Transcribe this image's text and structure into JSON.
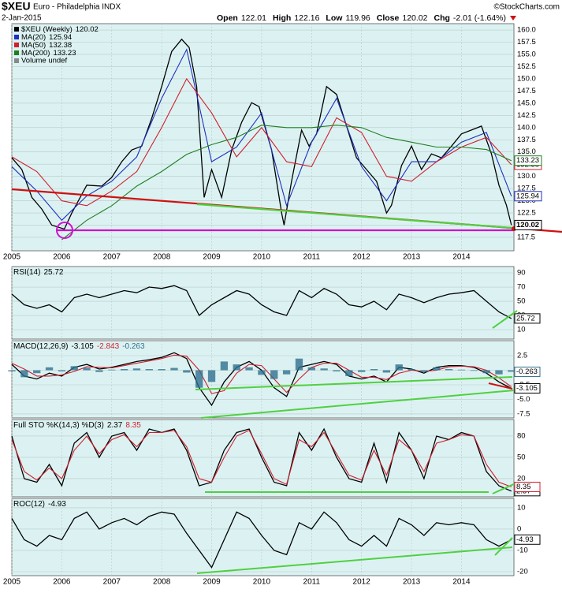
{
  "header": {
    "symbol": "$XEU",
    "name": "Euro - Philadelphia INDX",
    "source": "©StockCharts.com",
    "date": "2-Jan-2015",
    "quote": [
      {
        "label": "Open",
        "value": 122.01
      },
      {
        "label": "High",
        "value": 122.16
      },
      {
        "label": "Low",
        "value": 119.96
      },
      {
        "label": "Close",
        "value": 120.02
      },
      {
        "label": "Chg",
        "value": "-2.01 (-1.64%)"
      }
    ]
  },
  "chart_data": [
    {
      "type": "line",
      "volume_label": "Volume undef",
      "xlim": [
        2005,
        2015.05
      ],
      "xticks": [
        2005,
        2006,
        2007,
        2008,
        2009,
        2010,
        2011,
        2012,
        2013,
        2014
      ],
      "ylim": [
        114.75,
        161.3
      ],
      "yticks": [
        117.5,
        {
          "value": 120,
          "label": "120.0"
        },
        122.5,
        {
          "value": 125,
          "label": "125.0"
        },
        127.5,
        {
          "value": 130,
          "label": "130.0"
        },
        132.5,
        {
          "value": 135,
          "label": "135.0"
        },
        137.5,
        {
          "value": 140,
          "label": "140.0"
        },
        142.5,
        {
          "value": 145,
          "label": "145.0"
        },
        147.5,
        {
          "value": 150,
          "label": "150.0"
        },
        152.5,
        {
          "value": 155,
          "label": "155.0"
        },
        157.5,
        {
          "value": 160,
          "label": "160.0"
        }
      ],
      "series": [
        {
          "name": "$XEU (Weekly)",
          "color": "#000000",
          "x": [
            2005,
            2005.2,
            2005.4,
            2005.6,
            2005.8,
            2006.05,
            2006.2,
            2006.5,
            2006.8,
            2007,
            2007.2,
            2007.4,
            2007.6,
            2007.8,
            2008,
            2008.2,
            2008.4,
            2008.55,
            2008.7,
            2008.85,
            2009,
            2009.2,
            2009.4,
            2009.6,
            2009.8,
            2009.95,
            2010.2,
            2010.4,
            2010.45,
            2010.6,
            2010.8,
            2010.95,
            2011.1,
            2011.3,
            2011.5,
            2011.7,
            2011.9,
            2012.1,
            2012.3,
            2012.5,
            2012.6,
            2012.8,
            2013,
            2013.2,
            2013.4,
            2013.6,
            2013.8,
            2014,
            2014.2,
            2014.4,
            2014.6,
            2014.75,
            2014.9,
            2015
          ],
          "values": [
            133.8,
            131.4,
            125.7,
            123.3,
            120,
            119.2,
            122.5,
            128.2,
            128,
            129.8,
            133,
            135.4,
            136.2,
            141.9,
            148.4,
            155.6,
            158.1,
            156.4,
            148.4,
            125.7,
            131.4,
            125.7,
            135.4,
            141.1,
            145.1,
            144.3,
            135.4,
            122.5,
            120,
            129,
            139.5,
            136.2,
            138.7,
            148.4,
            146.8,
            140.3,
            133.8,
            131.4,
            129,
            122.5,
            124.1,
            132.2,
            136.2,
            131.4,
            134.6,
            133.8,
            136.2,
            138.7,
            139.5,
            140.3,
            134.6,
            128.2,
            124.1,
            120.02
          ]
        },
        {
          "name": "MA(20)",
          "color": "#1f2fbf",
          "x": [
            2005,
            2005.5,
            2006,
            2006.5,
            2007,
            2007.5,
            2008,
            2008.5,
            2009,
            2009.5,
            2010,
            2010.5,
            2011,
            2011.5,
            2012,
            2012.5,
            2013,
            2013.5,
            2014,
            2014.5,
            2015
          ],
          "values": [
            132,
            127,
            121,
            126,
            129,
            134,
            146,
            156,
            133,
            136,
            143,
            124,
            137,
            146,
            132,
            125,
            133,
            133,
            137,
            139,
            125.94
          ]
        },
        {
          "name": "MA(50)",
          "color": "#d01f2f",
          "x": [
            2005,
            2005.5,
            2006,
            2006.5,
            2007,
            2007.5,
            2008,
            2008.5,
            2009,
            2009.5,
            2010,
            2010.5,
            2011,
            2011.5,
            2012,
            2012.5,
            2013,
            2013.5,
            2014,
            2014.5,
            2015
          ],
          "values": [
            134,
            131,
            125,
            124,
            127,
            131,
            140,
            150,
            143,
            134,
            140,
            133,
            132,
            142,
            139,
            130,
            129,
            133,
            136,
            138,
            132.38
          ]
        },
        {
          "name": "MA(200)",
          "color": "#1f7f1f",
          "x": [
            2006,
            2006.5,
            2007,
            2007.5,
            2008,
            2008.5,
            2009,
            2009.5,
            2010,
            2010.5,
            2011,
            2011.5,
            2012,
            2012.5,
            2013,
            2013.5,
            2014,
            2014.5,
            2015
          ],
          "values": [
            117,
            121,
            124,
            128,
            131,
            134.5,
            136.5,
            138,
            140.5,
            140,
            140,
            140.5,
            140,
            138,
            137,
            136,
            136,
            135.5,
            133.23
          ]
        }
      ]
    },
    {
      "type": "line",
      "title": "RSI(14)",
      "xlim": [
        2005,
        2015.05
      ],
      "x": [
        2005,
        2005.25,
        2005.5,
        2005.75,
        2006,
        2006.25,
        2006.5,
        2006.75,
        2007,
        2007.25,
        2007.5,
        2007.75,
        2008,
        2008.25,
        2008.5,
        2008.75,
        2009,
        2009.25,
        2009.5,
        2009.75,
        2010,
        2010.25,
        2010.5,
        2010.75,
        2011,
        2011.25,
        2011.5,
        2011.75,
        2012,
        2012.25,
        2012.5,
        2012.75,
        2013,
        2013.25,
        2013.5,
        2013.75,
        2014,
        2014.25,
        2014.5,
        2014.75,
        2015
      ],
      "ylim": [
        -3.3,
        98.9
      ],
      "yticks": [
        10,
        30,
        50,
        70,
        90
      ],
      "series": [
        {
          "name": "RSI(14)",
          "color": "#000000",
          "values": [
            60,
            45,
            40,
            45,
            35,
            55,
            60,
            55,
            60,
            65,
            62,
            70,
            68,
            72,
            65,
            30,
            45,
            55,
            65,
            60,
            45,
            35,
            30,
            65,
            55,
            68,
            60,
            45,
            42,
            50,
            38,
            60,
            55,
            48,
            55,
            60,
            62,
            65,
            50,
            35,
            25.72
          ]
        }
      ]
    },
    {
      "type": "line",
      "title": "MACD(12,26,9)",
      "xlim": [
        2005,
        2015.05
      ],
      "x": [
        2005,
        2005.25,
        2005.5,
        2005.75,
        2006,
        2006.25,
        2006.5,
        2006.75,
        2007,
        2007.25,
        2007.5,
        2007.75,
        2008,
        2008.25,
        2008.5,
        2008.75,
        2009,
        2009.25,
        2009.5,
        2009.75,
        2010,
        2010.25,
        2010.5,
        2010.75,
        2011,
        2011.25,
        2011.5,
        2011.75,
        2012,
        2012.25,
        2012.5,
        2012.75,
        2013,
        2013.25,
        2013.5,
        2013.75,
        2014,
        2014.25,
        2014.5,
        2014.75,
        2015
      ],
      "ylim": [
        -8.18,
        5.07
      ],
      "yticks": [
        2.5,
        {
          "value": 0,
          "label": "0.0"
        },
        -2.5,
        {
          "value": -5,
          "label": "-5.0"
        },
        -7.5
      ],
      "series": [
        {
          "name": "MACD",
          "color": "#000000",
          "values": [
            1,
            -1,
            -1.5,
            -0.5,
            -1,
            0.5,
            1,
            0.2,
            0.5,
            1,
            1.5,
            1.8,
            2.2,
            3,
            2,
            -3,
            -6,
            -2,
            0.5,
            1.5,
            0,
            -3,
            -4.5,
            0.5,
            1,
            1.5,
            1,
            -1,
            -1.5,
            -1,
            -2,
            0.5,
            0.2,
            -0.5,
            0.5,
            0.8,
            0.8,
            0.5,
            -0.5,
            -2,
            -3.105
          ]
        },
        {
          "name": "Signal",
          "color": "#d01f2f",
          "values": [
            1.2,
            0.2,
            -1,
            -1,
            -0.8,
            -0.2,
            0.6,
            0.5,
            0.4,
            0.8,
            1.2,
            1.6,
            2,
            2.6,
            2.4,
            0,
            -4,
            -3.5,
            -0.5,
            1,
            0.8,
            -1.5,
            -3.8,
            -1.5,
            0.5,
            1.2,
            1.2,
            0,
            -1.2,
            -1.2,
            -1.6,
            -0.5,
            0,
            -0.2,
            0,
            0.6,
            0.7,
            0.6,
            0,
            -1.3,
            -2.843
          ]
        },
        {
          "name": "Histogram",
          "color": "#2f6f8f",
          "type": "bar",
          "values": [
            -0.2,
            -1.2,
            -0.5,
            0.5,
            -0.2,
            0.7,
            0.4,
            -0.3,
            0.1,
            0.2,
            0.3,
            0.2,
            0.2,
            0.4,
            -0.4,
            -3,
            -2,
            1.5,
            1,
            0.5,
            -0.8,
            -1.5,
            -0.7,
            2,
            0.5,
            0.3,
            -0.2,
            -1,
            -0.3,
            0.2,
            -0.4,
            1,
            0.2,
            -0.3,
            0.5,
            0.2,
            0.1,
            -0.1,
            -0.5,
            -0.7,
            -0.263
          ]
        }
      ]
    },
    {
      "type": "line",
      "title": "Full STO %K(14,3) %D(3)",
      "xlim": [
        2005,
        2015.05
      ],
      "x": [
        2005,
        2005.25,
        2005.5,
        2005.75,
        2006,
        2006.25,
        2006.5,
        2006.75,
        2007,
        2007.25,
        2007.5,
        2007.75,
        2008,
        2008.25,
        2008.5,
        2008.75,
        2009,
        2009.25,
        2009.5,
        2009.75,
        2010,
        2010.25,
        2010.5,
        2010.75,
        2011,
        2011.25,
        2011.5,
        2011.75,
        2012,
        2012.25,
        2012.5,
        2012.75,
        2013,
        2013.25,
        2013.5,
        2013.75,
        2014,
        2014.25,
        2014.5,
        2014.75,
        2015
      ],
      "ylim": [
        -5.6,
        103.3
      ],
      "yticks": [
        20,
        50,
        80
      ],
      "series": [
        {
          "name": "%K",
          "color": "#000000",
          "values": [
            80,
            20,
            15,
            40,
            10,
            70,
            85,
            50,
            80,
            85,
            60,
            90,
            85,
            90,
            60,
            10,
            15,
            60,
            85,
            90,
            50,
            15,
            10,
            85,
            60,
            90,
            50,
            20,
            15,
            70,
            15,
            85,
            60,
            20,
            80,
            75,
            85,
            80,
            30,
            10,
            2.37
          ]
        },
        {
          "name": "%D",
          "color": "#d01f2f",
          "values": [
            75,
            30,
            18,
            35,
            20,
            60,
            80,
            55,
            75,
            82,
            65,
            85,
            85,
            88,
            65,
            20,
            15,
            50,
            80,
            88,
            55,
            20,
            12,
            75,
            65,
            85,
            55,
            25,
            18,
            60,
            25,
            75,
            60,
            30,
            70,
            75,
            82,
            80,
            40,
            15,
            8.35
          ]
        }
      ]
    },
    {
      "type": "line",
      "title": "ROC(12)",
      "xlim": [
        2005,
        2015.05
      ],
      "xticks": [
        2005,
        2006,
        2007,
        2008,
        2009,
        2010,
        2011,
        2012,
        2013,
        2014
      ],
      "x": [
        2005,
        2005.25,
        2005.5,
        2005.75,
        2006,
        2006.25,
        2006.5,
        2006.75,
        2007,
        2007.25,
        2007.5,
        2007.75,
        2008,
        2008.25,
        2008.5,
        2008.75,
        2009,
        2009.25,
        2009.5,
        2009.75,
        2010,
        2010.25,
        2010.5,
        2010.75,
        2011,
        2011.25,
        2011.5,
        2011.75,
        2012,
        2012.25,
        2012.5,
        2012.75,
        2013,
        2013.25,
        2013.5,
        2013.75,
        2014,
        2014.25,
        2014.5,
        2014.75,
        2015
      ],
      "ylim": [
        -21.85,
        14.4
      ],
      "yticks": [
        10,
        0,
        -10,
        -20
      ],
      "series": [
        {
          "name": "ROC(12)",
          "color": "#000000",
          "values": [
            5,
            -5,
            -8,
            -3,
            -5,
            5,
            8,
            0,
            3,
            5,
            2,
            6,
            8,
            7,
            -2,
            -10,
            -18,
            -5,
            8,
            5,
            -3,
            -10,
            -12,
            3,
            0,
            8,
            3,
            -5,
            -8,
            -3,
            -8,
            5,
            2,
            -3,
            3,
            2,
            3,
            2,
            -5,
            -8,
            -4.93
          ]
        }
      ]
    }
  ]
}
